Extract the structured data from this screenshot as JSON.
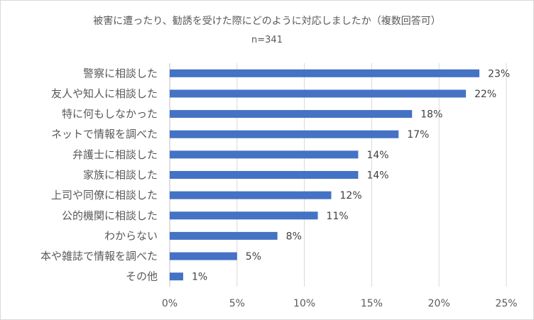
{
  "chart_data": {
    "type": "bar",
    "orientation": "horizontal",
    "title": "被害に遭ったり、勧誘を受けた際にどのように対応しましたか（複数回答可）",
    "subtitle": "n=341",
    "categories": [
      "警察に相談した",
      "友人や知人に相談した",
      "特に何もしなかった",
      "ネットで情報を調べた",
      "弁護士に相談した",
      "家族に相談した",
      "上司や同僚に相談した",
      "公的機関に相談した",
      "わからない",
      "本や雑誌で情報を調べた",
      "その他"
    ],
    "values": [
      23,
      22,
      18,
      17,
      14,
      14,
      12,
      11,
      8,
      5,
      1
    ],
    "value_labels": [
      "23%",
      "22%",
      "18%",
      "17%",
      "14%",
      "14%",
      "12%",
      "11%",
      "8%",
      "5%",
      "1%"
    ],
    "x_ticks": [
      0,
      5,
      10,
      15,
      20,
      25
    ],
    "x_tick_labels": [
      "0%",
      "5%",
      "10%",
      "15%",
      "20%",
      "25%"
    ],
    "xlim": [
      0,
      25
    ],
    "grid": true,
    "legend": "none",
    "bar_color": "#4472c4"
  }
}
